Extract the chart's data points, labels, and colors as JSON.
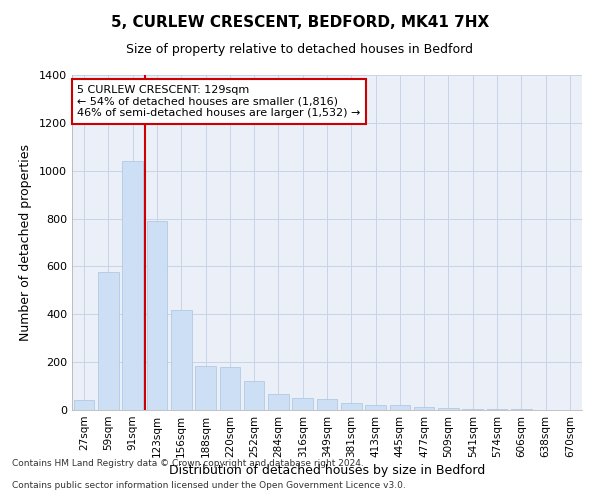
{
  "title": "5, CURLEW CRESCENT, BEDFORD, MK41 7HX",
  "subtitle": "Size of property relative to detached houses in Bedford",
  "xlabel": "Distribution of detached houses by size in Bedford",
  "ylabel": "Number of detached properties",
  "annotation_line1": "5 CURLEW CRESCENT: 129sqm",
  "annotation_line2": "← 54% of detached houses are smaller (1,816)",
  "annotation_line3": "46% of semi-detached houses are larger (1,532) →",
  "footnote1": "Contains HM Land Registry data © Crown copyright and database right 2024.",
  "footnote2": "Contains public sector information licensed under the Open Government Licence v3.0.",
  "bar_color": "#ccdff5",
  "bar_edge_color": "#aac4e0",
  "vline_color": "#cc0000",
  "annotation_box_edge": "#cc0000",
  "grid_color": "#c8d4e8",
  "categories": [
    "27sqm",
    "59sqm",
    "91sqm",
    "123sqm",
    "156sqm",
    "188sqm",
    "220sqm",
    "252sqm",
    "284sqm",
    "316sqm",
    "349sqm",
    "381sqm",
    "413sqm",
    "445sqm",
    "477sqm",
    "509sqm",
    "541sqm",
    "574sqm",
    "606sqm",
    "638sqm",
    "670sqm"
  ],
  "values": [
    40,
    575,
    1040,
    790,
    420,
    185,
    180,
    120,
    65,
    50,
    45,
    30,
    22,
    20,
    12,
    8,
    6,
    4,
    3,
    2,
    1
  ],
  "ylim": [
    0,
    1400
  ],
  "yticks": [
    0,
    200,
    400,
    600,
    800,
    1000,
    1200,
    1400
  ],
  "vline_pos": 2.5,
  "figsize": [
    6.0,
    5.0
  ],
  "dpi": 100,
  "background_color": "#ffffff",
  "plot_bg_color": "#eaeff8"
}
